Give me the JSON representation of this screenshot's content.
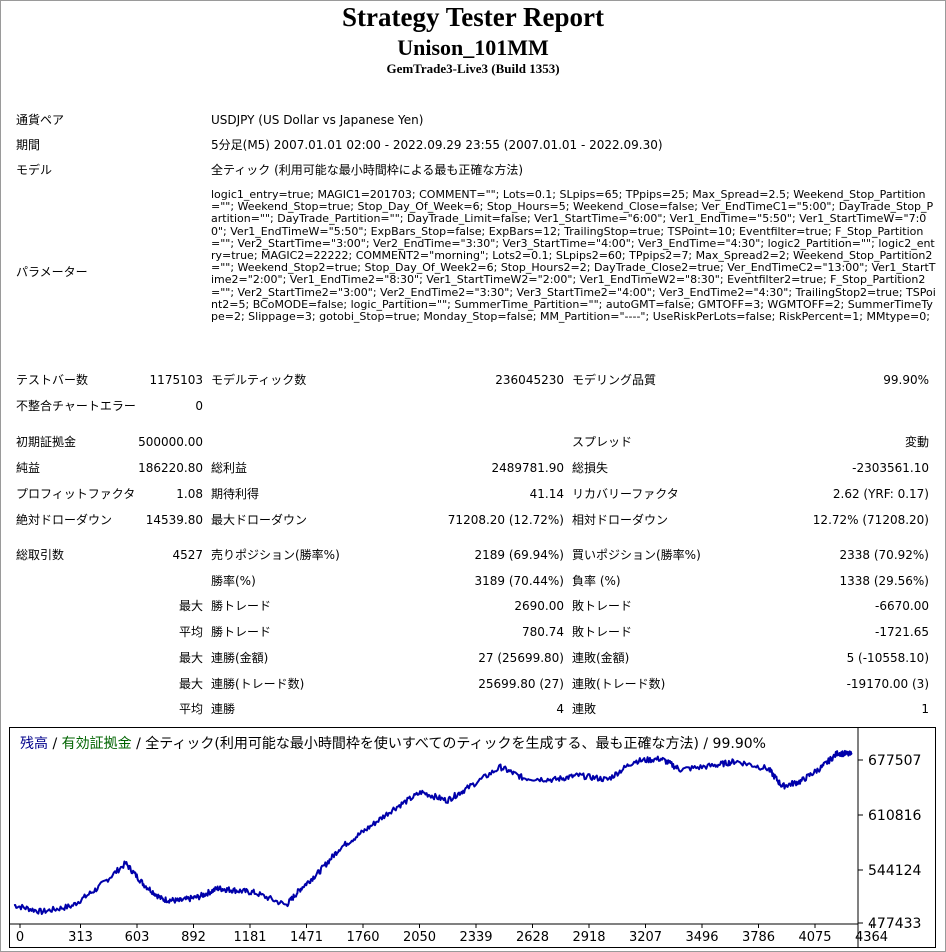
{
  "report": {
    "title": "Strategy Tester Report",
    "ea_name": "Unison_101MM",
    "build": "GemTrade3-Live3 (Build 1353)"
  },
  "info": {
    "symbol_label": "通貨ペア",
    "symbol_value": "USDJPY (US Dollar vs Japanese Yen)",
    "period_label": "期間",
    "period_value": "5分足(M5) 2007.01.01 02:00 - 2022.09.29 23:55 (2007.01.01 - 2022.09.30)",
    "model_label": "モデル",
    "model_value": "全ティック (利用可能な最小時間枠による最も正確な方法)",
    "params_label": "パラメーター",
    "params_value": "logic1_entry=true; MAGIC1=201703; COMMENT=\"\"; Lots=0.1; SLpips=65; TPpips=25; Max_Spread=2.5; Weekend_Stop_Partition=\"\"; Weekend_Stop=true; Stop_Day_Of_Week=6; Stop_Hours=5; Weekend_Close=false; Ver_EndTimeC1=\"5:00\"; DayTrade_Stop_Partition=\"\"; DayTrade_Partition=\"\"; DayTrade_Limit=false; Ver1_StartTime=\"6:00\"; Ver1_EndTime=\"5:50\"; Ver1_StartTimeW=\"7:00\"; Ver1_EndTimeW=\"5:50\"; ExpBars_Stop=false; ExpBars=12; TrailingStop=true; TSPoint=10; Eventfilter=true; F_Stop_Partition=\"\"; Ver2_StartTime=\"3:00\"; Ver2_EndTime=\"3:30\"; Ver3_StartTime=\"4:00\"; Ver3_EndTime=\"4:30\"; logic2_Partition=\"\"; logic2_entry=true; MAGIC2=22222; COMMENT2=\"morning\"; Lots2=0.1; SLpips2=60; TPpips2=7; Max_Spread2=2; Weekend_Stop_Partition2=\"\"; Weekend_Stop2=true; Stop_Day_Of_Week2=6; Stop_Hours2=2; DayTrade_Close2=true; Ver_EndTimeC2=\"13:00\"; Ver1_StartTime2=\"2:00\"; Ver1_EndTime2=\"8:30\"; Ver1_StartTimeW2=\"2:00\"; Ver1_EndTimeW2=\"8:30\"; Eventfilter2=true; F_Stop_Partition2=\"\"; Ver2_StartTime2=\"3:00\"; Ver2_EndTime2=\"3:30\"; Ver3_StartTime2=\"4:00\"; Ver3_EndTime2=\"4:30\"; TrailingStop2=true; TSPoint2=5; BCoMODE=false; logic_Partition=\"\"; SummerTime_Partition=\"\"; autoGMT=false; GMTOFF=3; WGMTOFF=2; SummerTimeType=2; Slippage=3; gotobi_Stop=true; Monday_Stop=false; MM_Partition=\"----\"; UseRiskPerLots=false; RiskPercent=1; MMtype=0;"
  },
  "stats": {
    "bars_label": "テストバー数",
    "bars_value": "1175103",
    "ticks_label": "モデルティック数",
    "ticks_value": "236045230",
    "quality_label": "モデリング品質",
    "quality_value": "99.90%",
    "mismatch_label": "不整合チャートエラー",
    "mismatch_value": "0",
    "deposit_label": "初期証拠金",
    "deposit_value": "500000.00",
    "spread_label": "スプレッド",
    "spread_value": "変動",
    "net_label": "純益",
    "net_value": "186220.80",
    "gross_profit_label": "総利益",
    "gross_profit_value": "2489781.90",
    "gross_loss_label": "総損失",
    "gross_loss_value": "-2303561.10",
    "pf_label": "プロフィットファクタ",
    "pf_value": "1.08",
    "expected_label": "期待利得",
    "expected_value": "41.14",
    "recovery_label": "リカバリーファクタ",
    "recovery_value": "2.62 (YRF: 0.17)",
    "abs_dd_label": "絶対ドローダウン",
    "abs_dd_value": "14539.80",
    "max_dd_label": "最大ドローダウン",
    "max_dd_value": "71208.20 (12.72%)",
    "rel_dd_label": "相対ドローダウン",
    "rel_dd_value": "12.72% (71208.20)",
    "trades_label": "総取引数",
    "trades_value": "4527",
    "short_label": "売りポジション(勝率%)",
    "short_value": "2189 (69.94%)",
    "long_label": "買いポジション(勝率%)",
    "long_value": "2338 (70.92%)",
    "winrate_label": "勝率(%)",
    "winrate_value": "3189 (70.44%)",
    "lossrate_label": "負率 (%)",
    "lossrate_value": "1338 (29.56%)",
    "max_label_1": "最大",
    "largest_win_label": "勝トレード",
    "largest_win_value": "2690.00",
    "largest_loss_label": "敗トレード",
    "largest_loss_value": "-6670.00",
    "avg_label_1": "平均",
    "avg_win_label": "勝トレード",
    "avg_win_value": "780.74",
    "avg_loss_label": "敗トレード",
    "avg_loss_value": "-1721.65",
    "max_label_2": "最大",
    "max_cons_win_amt_label": "連勝(金額)",
    "max_cons_win_amt_value": "27 (25699.80)",
    "max_cons_loss_amt_label": "連敗(金額)",
    "max_cons_loss_amt_value": "5 (-10558.10)",
    "max_label_3": "最大",
    "max_cons_win_cnt_label": "連勝(トレード数)",
    "max_cons_win_cnt_value": "25699.80 (27)",
    "max_cons_loss_cnt_label": "連敗(トレード数)",
    "max_cons_loss_cnt_value": "-19170.00 (3)",
    "avg_label_2": "平均",
    "avg_cons_win_label": "連勝",
    "avg_cons_win_value": "4",
    "avg_cons_loss_label": "連敗",
    "avg_cons_loss_value": "1"
  },
  "chart_data": {
    "type": "line",
    "legend_balance": "残高",
    "legend_sep1": " / ",
    "legend_equity": "有効証拠金",
    "legend_rest": " / 全ティック(利用可能な最小時間枠を使いすべてのティックを生成する、最も正確な方法) / 99.90%",
    "x_ticks": [
      "0",
      "313",
      "603",
      "892",
      "1181",
      "1471",
      "1760",
      "2050",
      "2339",
      "2628",
      "2918",
      "3207",
      "3496",
      "3786",
      "4075",
      "4364"
    ],
    "y_ticks": [
      "677507",
      "610816",
      "544124",
      "477433"
    ],
    "xlim": [
      0,
      4527
    ],
    "ylim": [
      477433,
      695000
    ],
    "series_color": "#0000aa",
    "legend_balance_color": "#00008b",
    "legend_equity_color": "#006400",
    "x": [
      0,
      150,
      313,
      450,
      603,
      700,
      800,
      892,
      1000,
      1100,
      1181,
      1300,
      1471,
      1550,
      1650,
      1760,
      1900,
      2050,
      2200,
      2339,
      2450,
      2628,
      2750,
      2918,
      3050,
      3207,
      3350,
      3496,
      3600,
      3786,
      3900,
      4075,
      4150,
      4250,
      4364,
      4450,
      4527
    ],
    "y": [
      500000,
      492000,
      499000,
      520000,
      550000,
      525000,
      507000,
      505000,
      510000,
      520000,
      518000,
      515000,
      500000,
      520000,
      540000,
      568000,
      590000,
      615000,
      635000,
      625000,
      640000,
      665000,
      652000,
      650000,
      655000,
      650000,
      672000,
      675000,
      662000,
      667000,
      672000,
      663000,
      642000,
      648000,
      665000,
      682000,
      680000
    ]
  }
}
